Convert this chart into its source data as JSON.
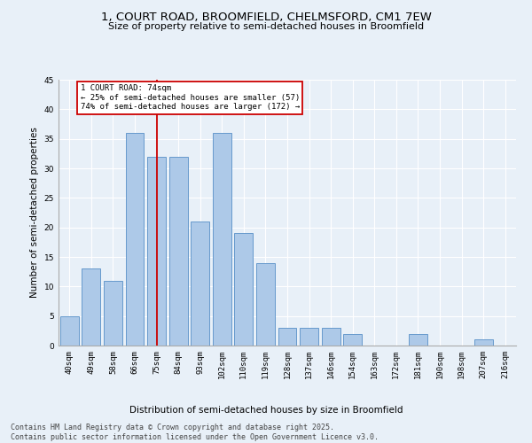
{
  "title": "1, COURT ROAD, BROOMFIELD, CHELMSFORD, CM1 7EW",
  "subtitle": "Size of property relative to semi-detached houses in Broomfield",
  "xlabel": "Distribution of semi-detached houses by size in Broomfield",
  "ylabel": "Number of semi-detached properties",
  "footer_line1": "Contains HM Land Registry data © Crown copyright and database right 2025.",
  "footer_line2": "Contains public sector information licensed under the Open Government Licence v3.0.",
  "categories": [
    "40sqm",
    "49sqm",
    "58sqm",
    "66sqm",
    "75sqm",
    "84sqm",
    "93sqm",
    "102sqm",
    "110sqm",
    "119sqm",
    "128sqm",
    "137sqm",
    "146sqm",
    "154sqm",
    "163sqm",
    "172sqm",
    "181sqm",
    "190sqm",
    "198sqm",
    "207sqm",
    "216sqm"
  ],
  "values": [
    5,
    13,
    11,
    36,
    32,
    32,
    21,
    36,
    19,
    14,
    3,
    3,
    3,
    2,
    0,
    0,
    2,
    0,
    0,
    1,
    0
  ],
  "bar_color": "#adc9e8",
  "bar_edge_color": "#6699cc",
  "vline_x_index": 4,
  "vline_color": "#cc0000",
  "annotation_title": "1 COURT ROAD: 74sqm",
  "annotation_line2": "← 25% of semi-detached houses are smaller (57)",
  "annotation_line3": "74% of semi-detached houses are larger (172) →",
  "annotation_box_color": "#cc0000",
  "annotation_text_color": "#000000",
  "ylim": [
    0,
    45
  ],
  "yticks": [
    0,
    5,
    10,
    15,
    20,
    25,
    30,
    35,
    40,
    45
  ],
  "background_color": "#e8f0f8",
  "grid_color": "#ffffff",
  "title_fontsize": 9.5,
  "subtitle_fontsize": 8,
  "axis_label_fontsize": 7.5,
  "tick_fontsize": 6.5,
  "annotation_fontsize": 6.5,
  "footer_fontsize": 6
}
